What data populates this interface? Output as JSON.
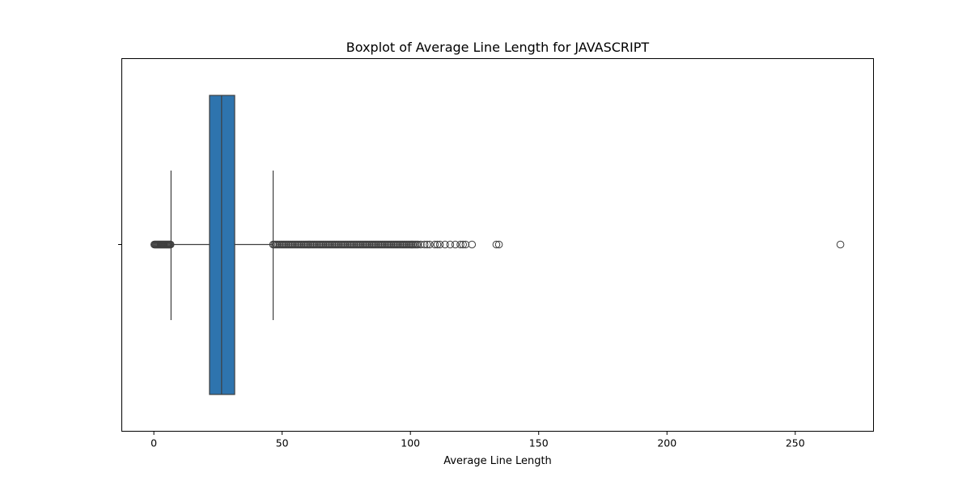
{
  "chart_data": {
    "type": "boxplot",
    "title": "Boxplot of Average Line Length for JAVASCRIPT",
    "xlabel": "Average Line Length",
    "ylabel": "",
    "xlim": [
      -12.5,
      280.5
    ],
    "x_ticks": [
      0,
      50,
      100,
      150,
      200,
      250
    ],
    "x_tick_labels": [
      "0",
      "50",
      "100",
      "150",
      "200",
      "250"
    ],
    "orientation": "horizontal",
    "grid": false,
    "legend": "none",
    "box": {
      "whisker_low": 6.7,
      "q1": 21.7,
      "median": 26.4,
      "q3": 31.5,
      "whisker_high": 46.5
    },
    "outliers_low": [
      0.2,
      0.5,
      0.8,
      1.1,
      1.4,
      1.7,
      2.0,
      2.3,
      2.6,
      2.9,
      3.2,
      3.5,
      3.8,
      4.1,
      4.4,
      4.7,
      5.0,
      5.3,
      5.6,
      5.9,
      6.2,
      6.5
    ],
    "outliers_high_dense_range": [
      46.5,
      103
    ],
    "outliers_high": [
      104,
      105.5,
      106.5,
      107.5,
      109.5,
      110.5,
      111.5,
      113.5,
      115.5,
      117.5,
      119.5,
      120.5,
      121.5,
      124,
      133.5,
      134.5,
      267.6
    ],
    "colors": {
      "box_fill": "#2e74ae",
      "line": "#3f3f3f",
      "outlier_edge": "#3f3f3f"
    }
  }
}
